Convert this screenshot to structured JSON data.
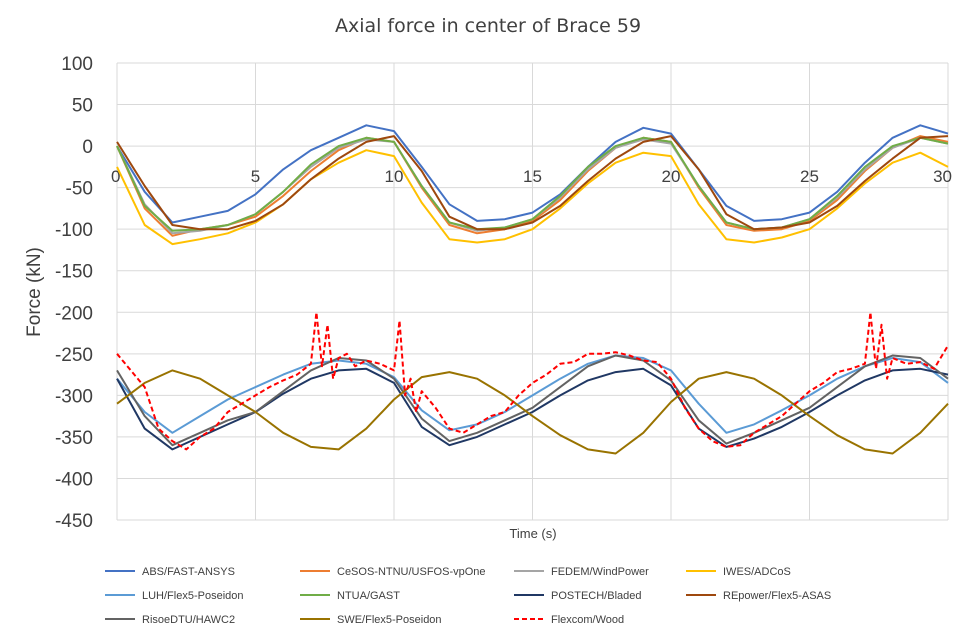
{
  "chart_data": {
    "type": "line",
    "title": "Axial force in center of Brace 59",
    "xlabel": "Time (s)",
    "ylabel": "Force (kN)",
    "xlim": [
      0,
      30
    ],
    "ylim": [
      -450,
      100
    ],
    "xticks": [
      "0",
      "5",
      "10",
      "15",
      "20",
      "25",
      "30"
    ],
    "yticks": [
      "100",
      "50",
      "0",
      "-50",
      "-100",
      "-150",
      "-200",
      "-250",
      "-300",
      "-350",
      "-400",
      "-450"
    ],
    "grid": true,
    "legend_position": "bottom",
    "series": [
      {
        "name": "ABS/FAST-ANSYS",
        "color": "#4472c4",
        "dash": false,
        "x": [
          0,
          1,
          2,
          3,
          4,
          5,
          6,
          7,
          8,
          9,
          10,
          11,
          12,
          13,
          14,
          15,
          16,
          17,
          18,
          19,
          20,
          21,
          22,
          23,
          24,
          25,
          26,
          27,
          28,
          29,
          30
        ],
        "y": [
          0,
          -55,
          -92,
          -85,
          -78,
          -58,
          -28,
          -5,
          10,
          25,
          18,
          -25,
          -70,
          -90,
          -88,
          -80,
          -58,
          -25,
          5,
          22,
          15,
          -28,
          -72,
          -90,
          -88,
          -80,
          -55,
          -20,
          10,
          25,
          15
        ]
      },
      {
        "name": "CeSOS-NTNU/USFOS-vpOne",
        "color": "#ed7d31",
        "dash": false,
        "x": [
          0,
          1,
          2,
          3,
          4,
          5,
          6,
          7,
          8,
          9,
          10,
          11,
          12,
          13,
          14,
          15,
          16,
          17,
          18,
          19,
          20,
          21,
          22,
          23,
          24,
          25,
          26,
          27,
          28,
          29,
          30
        ],
        "y": [
          0,
          -75,
          -108,
          -100,
          -95,
          -85,
          -60,
          -30,
          -5,
          10,
          5,
          -50,
          -95,
          -105,
          -100,
          -90,
          -65,
          -30,
          -2,
          10,
          5,
          -50,
          -95,
          -102,
          -100,
          -90,
          -65,
          -30,
          -2,
          12,
          5
        ]
      },
      {
        "name": "FEDEM/WindPower",
        "color": "#a5a5a5",
        "dash": false,
        "x": [
          0,
          1,
          2,
          3,
          4,
          5,
          6,
          7,
          8,
          9,
          10,
          11,
          12,
          13,
          14,
          15,
          16,
          17,
          18,
          19,
          20,
          21,
          22,
          23,
          24,
          25,
          26,
          27,
          28,
          29,
          30
        ],
        "y": [
          0,
          -70,
          -105,
          -102,
          -95,
          -82,
          -55,
          -25,
          -2,
          8,
          5,
          -48,
          -92,
          -102,
          -98,
          -88,
          -62,
          -28,
          -2,
          8,
          3,
          -48,
          -92,
          -100,
          -98,
          -88,
          -62,
          -28,
          -2,
          10,
          3
        ]
      },
      {
        "name": "IWES/ADCoS",
        "color": "#ffc000",
        "dash": false,
        "x": [
          0,
          1,
          2,
          3,
          4,
          5,
          6,
          7,
          8,
          9,
          10,
          11,
          12,
          13,
          14,
          15,
          16,
          17,
          18,
          19,
          20,
          21,
          22,
          23,
          24,
          25,
          26,
          27,
          28,
          29,
          30
        ],
        "y": [
          -25,
          -95,
          -118,
          -112,
          -105,
          -92,
          -70,
          -40,
          -20,
          -5,
          -12,
          -68,
          -112,
          -116,
          -112,
          -100,
          -75,
          -45,
          -20,
          -8,
          -12,
          -70,
          -112,
          -116,
          -110,
          -100,
          -75,
          -45,
          -20,
          -8,
          -25
        ]
      },
      {
        "name": "LUH/Flex5-Poseidon",
        "color": "#5b9bd5",
        "dash": false,
        "x": [
          0,
          1,
          2,
          3,
          4,
          5,
          6,
          7,
          8,
          9,
          10,
          11,
          12,
          13,
          14,
          15,
          16,
          17,
          18,
          19,
          20,
          21,
          22,
          23,
          24,
          25,
          26,
          27,
          28,
          29,
          30
        ],
        "y": [
          -280,
          -320,
          -345,
          -325,
          -305,
          -290,
          -275,
          -262,
          -258,
          -262,
          -278,
          -318,
          -342,
          -335,
          -320,
          -300,
          -280,
          -262,
          -252,
          -255,
          -270,
          -310,
          -345,
          -335,
          -318,
          -300,
          -280,
          -265,
          -255,
          -260,
          -285
        ]
      },
      {
        "name": "NTUA/GAST",
        "color": "#70ad47",
        "dash": false,
        "x": [
          0,
          1,
          2,
          3,
          4,
          5,
          6,
          7,
          8,
          9,
          10,
          11,
          12,
          13,
          14,
          15,
          16,
          17,
          18,
          19,
          20,
          21,
          22,
          23,
          24,
          25,
          26,
          27,
          28,
          29,
          30
        ],
        "y": [
          0,
          -72,
          -102,
          -100,
          -95,
          -82,
          -55,
          -22,
          0,
          10,
          5,
          -48,
          -92,
          -100,
          -98,
          -88,
          -60,
          -25,
          0,
          10,
          5,
          -48,
          -92,
          -100,
          -98,
          -88,
          -60,
          -25,
          0,
          10,
          3
        ]
      },
      {
        "name": "POSTECH/Bladed",
        "color": "#203864",
        "dash": false,
        "x": [
          0,
          1,
          2,
          3,
          4,
          5,
          6,
          7,
          8,
          9,
          10,
          11,
          12,
          13,
          14,
          15,
          16,
          17,
          18,
          19,
          20,
          21,
          22,
          23,
          24,
          25,
          26,
          27,
          28,
          29,
          30
        ],
        "y": [
          -280,
          -340,
          -365,
          -350,
          -335,
          -320,
          -298,
          -280,
          -270,
          -268,
          -285,
          -338,
          -360,
          -350,
          -335,
          -320,
          -300,
          -282,
          -272,
          -268,
          -288,
          -340,
          -362,
          -352,
          -338,
          -320,
          -300,
          -282,
          -270,
          -268,
          -275
        ]
      },
      {
        "name": "REpower/Flex5-ASAS",
        "color": "#9e480e",
        "dash": false,
        "x": [
          0,
          1,
          2,
          3,
          4,
          5,
          6,
          7,
          8,
          9,
          10,
          11,
          12,
          13,
          14,
          15,
          16,
          17,
          18,
          19,
          20,
          21,
          22,
          23,
          24,
          25,
          26,
          27,
          28,
          29,
          30
        ],
        "y": [
          5,
          -48,
          -95,
          -100,
          -100,
          -90,
          -70,
          -40,
          -15,
          5,
          12,
          -30,
          -85,
          -100,
          -100,
          -92,
          -72,
          -42,
          -15,
          5,
          12,
          -28,
          -82,
          -100,
          -98,
          -92,
          -72,
          -42,
          -15,
          10,
          12
        ]
      },
      {
        "name": "RisoeDTU/HAWC2",
        "color": "#636363",
        "dash": false,
        "x": [
          0,
          1,
          2,
          3,
          4,
          5,
          6,
          7,
          8,
          9,
          10,
          11,
          12,
          13,
          14,
          15,
          16,
          17,
          18,
          19,
          20,
          21,
          22,
          23,
          24,
          25,
          26,
          27,
          28,
          29,
          30
        ],
        "y": [
          -270,
          -325,
          -360,
          -345,
          -330,
          -320,
          -295,
          -270,
          -255,
          -258,
          -280,
          -328,
          -355,
          -345,
          -330,
          -315,
          -290,
          -265,
          -252,
          -258,
          -282,
          -330,
          -358,
          -345,
          -330,
          -315,
          -290,
          -265,
          -252,
          -255,
          -280
        ]
      },
      {
        "name": "SWE/Flex5-Poseidon",
        "color": "#997300",
        "dash": false,
        "x": [
          0,
          1,
          2,
          3,
          4,
          5,
          6,
          7,
          8,
          9,
          10,
          11,
          12,
          13,
          14,
          15,
          16,
          17,
          18,
          19,
          20,
          21,
          22,
          23,
          24,
          25,
          26,
          27,
          28,
          29,
          30
        ],
        "y": [
          -310,
          -285,
          -270,
          -280,
          -300,
          -320,
          -345,
          -362,
          -365,
          -340,
          -305,
          -278,
          -272,
          -280,
          -300,
          -325,
          -348,
          -365,
          -370,
          -345,
          -308,
          -280,
          -272,
          -280,
          -300,
          -325,
          -348,
          -365,
          -370,
          -345,
          -310
        ]
      },
      {
        "name": "Flexcom/Wood",
        "color": "#ff0000",
        "dash": true,
        "x": [
          0,
          0.5,
          1,
          1.5,
          2,
          2.5,
          3,
          3.5,
          4,
          4.5,
          5,
          5.5,
          6,
          6.5,
          7,
          7.2,
          7.4,
          7.6,
          7.8,
          8,
          8.3,
          8.6,
          9,
          9.5,
          10,
          10.2,
          10.4,
          10.6,
          10.8,
          11,
          11.5,
          12,
          12.5,
          13,
          13.5,
          14,
          14.5,
          15,
          15.5,
          16,
          16.5,
          17,
          17.5,
          18,
          18.5,
          19,
          19.5,
          20,
          20.5,
          21,
          21.5,
          22,
          22.5,
          23,
          23.5,
          24,
          24.5,
          25,
          25.5,
          26,
          26.5,
          27,
          27.2,
          27.4,
          27.6,
          27.8,
          28,
          28.5,
          29,
          29.5,
          30
        ],
        "y": [
          -250,
          -270,
          -290,
          -340,
          -355,
          -365,
          -350,
          -340,
          -320,
          -310,
          -300,
          -290,
          -282,
          -275,
          -262,
          -200,
          -265,
          -215,
          -280,
          -255,
          -250,
          -265,
          -258,
          -262,
          -270,
          -210,
          -300,
          -280,
          -320,
          -295,
          -315,
          -340,
          -345,
          -335,
          -325,
          -320,
          -300,
          -285,
          -275,
          -262,
          -260,
          -250,
          -250,
          -248,
          -252,
          -258,
          -260,
          -280,
          -315,
          -340,
          -355,
          -362,
          -360,
          -345,
          -335,
          -325,
          -310,
          -295,
          -285,
          -272,
          -268,
          -262,
          -200,
          -268,
          -215,
          -280,
          -255,
          -262,
          -260,
          -268,
          -240
        ]
      }
    ]
  }
}
